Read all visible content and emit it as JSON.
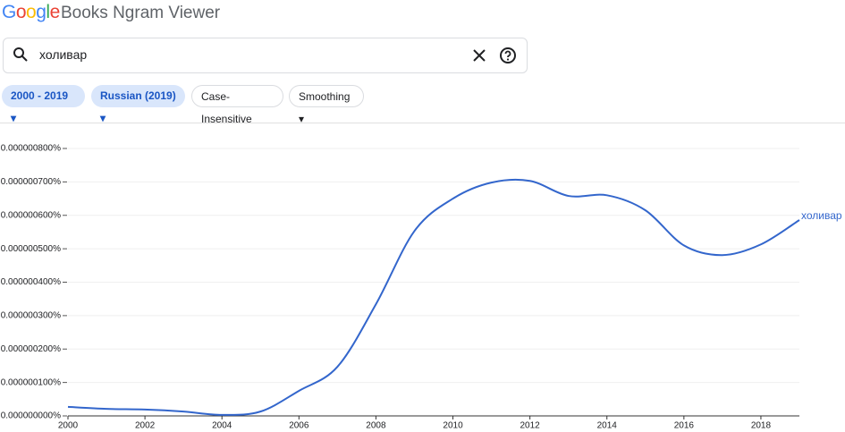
{
  "header": {
    "logo": "Google",
    "title": "Books Ngram Viewer"
  },
  "search": {
    "query": "холивар"
  },
  "filters": [
    "2000 - 2019",
    "Russian (2019)",
    "Case-Insensitive",
    "Smoothing"
  ],
  "chart_data": {
    "type": "line",
    "x": [
      2000,
      2001,
      2002,
      2003,
      2004,
      2005,
      2006,
      2007,
      2008,
      2009,
      2010,
      2011,
      2012,
      2013,
      2014,
      2015,
      2016,
      2017,
      2018,
      2019
    ],
    "series": [
      {
        "name": "холивар",
        "color": "#3366cc",
        "values": [
          2.7e-08,
          2.1e-08,
          1.9e-08,
          1.3e-08,
          3e-09,
          1.3e-08,
          7.5e-08,
          1.47e-07,
          3.34e-07,
          5.53e-07,
          6.5e-07,
          6.98e-07,
          7.03e-07,
          6.58e-07,
          6.6e-07,
          6.15e-07,
          5.1e-07,
          4.81e-07,
          5.13e-07,
          5.86e-07
        ]
      }
    ],
    "xlim": [
      2000,
      2019
    ],
    "xticks": [
      2000,
      2002,
      2004,
      2006,
      2008,
      2010,
      2012,
      2014,
      2016,
      2018
    ],
    "ylim": [
      0,
      8e-07
    ],
    "yticks": [
      {
        "value": 0,
        "label": "0.000000000%"
      },
      {
        "value": 1e-07,
        "label": "0.000000100%"
      },
      {
        "value": 2e-07,
        "label": "0.000000200%"
      },
      {
        "value": 3e-07,
        "label": "0.000000300%"
      },
      {
        "value": 4e-07,
        "label": "0.000000400%"
      },
      {
        "value": 5e-07,
        "label": "0.000000500%"
      },
      {
        "value": 6e-07,
        "label": "0.000000600%"
      },
      {
        "value": 7e-07,
        "label": "0.000000700%"
      },
      {
        "value": 8e-07,
        "label": "0.000000800%"
      }
    ],
    "grid": true
  }
}
